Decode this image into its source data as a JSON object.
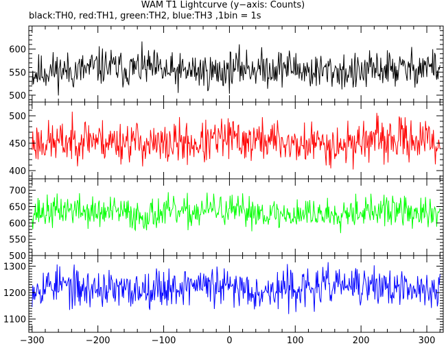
{
  "chart_data": {
    "type": "line",
    "title": "WAM T1 Lightcurve (y−axis: Counts)",
    "subtitle": "black:TH0, red:TH1, green:TH2, blue:TH3 ,1bin = 1s",
    "xlim": [
      -305,
      325
    ],
    "x_ticks": [
      -300,
      -200,
      -100,
      0,
      100,
      200,
      300
    ],
    "x_tick_labels": [
      "−300",
      "−200",
      "−100",
      "0",
      "100",
      "200",
      "300"
    ],
    "x_step": 1,
    "grid": false,
    "series": [
      {
        "name": "TH0",
        "color": "#000000",
        "ylim": [
          485,
          650
        ],
        "yticks": [
          500,
          550,
          600
        ],
        "mean": 555,
        "sd": 20,
        "noise_seed": 11
      },
      {
        "name": "TH1",
        "color": "#ff0000",
        "ylim": [
          385,
          525
        ],
        "yticks": [
          400,
          450,
          500
        ],
        "mean": 452,
        "sd": 19,
        "noise_seed": 23
      },
      {
        "name": "TH2",
        "color": "#00ff00",
        "ylim": [
          500,
          735
        ],
        "yticks": [
          500,
          550,
          600,
          650,
          700
        ],
        "mean": 632,
        "sd": 24,
        "noise_seed": 37
      },
      {
        "name": "TH3",
        "color": "#0000ff",
        "ylim": [
          1050,
          1340
        ],
        "yticks": [
          1100,
          1200,
          1300
        ],
        "mean": 1218,
        "sd": 36,
        "noise_seed": 53
      }
    ]
  }
}
